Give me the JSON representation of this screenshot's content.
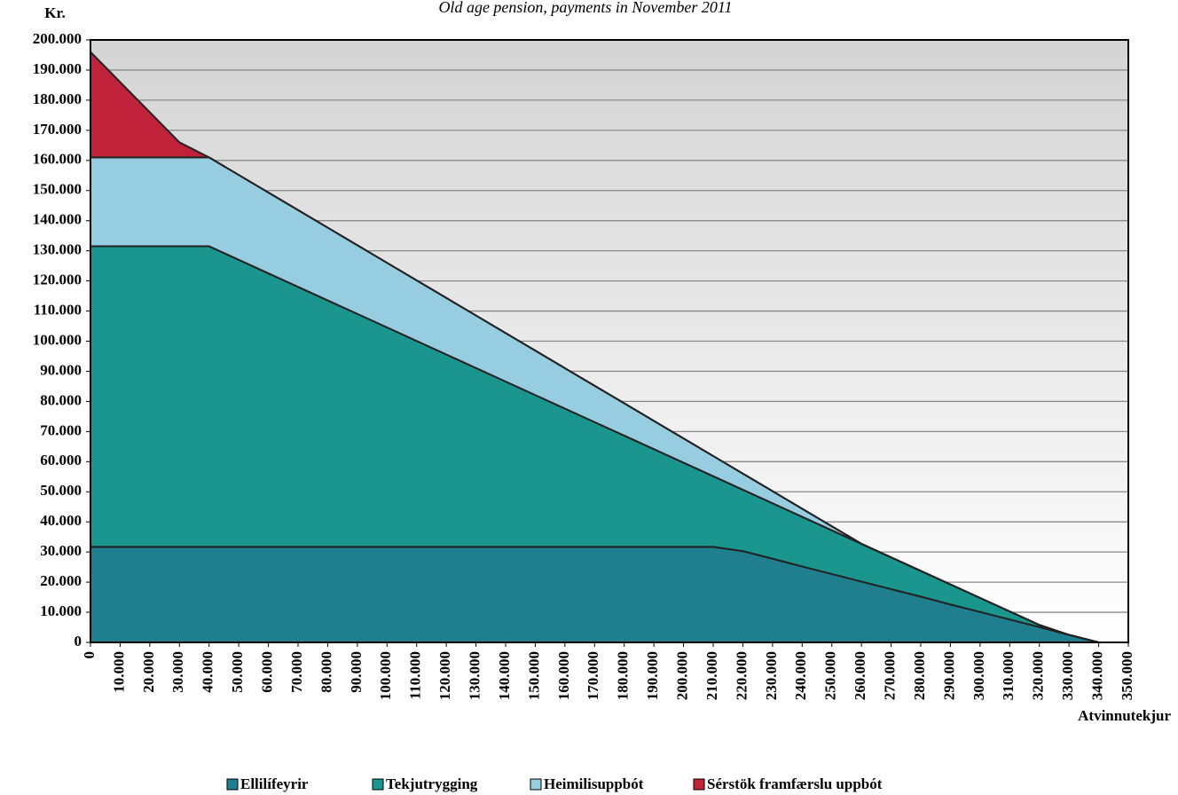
{
  "chart_data": {
    "type": "stacked-area",
    "title": "Old age pension, payments in November 2011",
    "y_label": "Kr.",
    "x_label": "Atvinnutekjur",
    "x": [
      0,
      10000,
      20000,
      30000,
      40000,
      50000,
      60000,
      70000,
      80000,
      90000,
      100000,
      110000,
      120000,
      130000,
      140000,
      150000,
      160000,
      170000,
      180000,
      190000,
      200000,
      210000,
      220000,
      230000,
      240000,
      250000,
      260000,
      270000,
      280000,
      290000,
      300000,
      310000,
      320000,
      330000,
      340000,
      350000
    ],
    "series": [
      {
        "name": "Ellilífeyrir",
        "color": "#1f7f8f",
        "values": [
          31700,
          31700,
          31700,
          31700,
          31700,
          31700,
          31700,
          31700,
          31700,
          31700,
          31700,
          31700,
          31700,
          31700,
          31700,
          31700,
          31700,
          31700,
          31700,
          31700,
          31700,
          31700,
          30300,
          27800,
          25200,
          22700,
          20200,
          17700,
          15200,
          12600,
          10100,
          7600,
          5100,
          2500,
          0,
          0
        ]
      },
      {
        "name": "Tekjutrygging",
        "color": "#1a968f",
        "values": [
          99800,
          99800,
          99800,
          99800,
          99800,
          95310,
          90820,
          86330,
          81840,
          77350,
          72860,
          68370,
          63880,
          59390,
          54900,
          50410,
          45920,
          41430,
          36940,
          32450,
          27960,
          23470,
          20380,
          18390,
          16500,
          14510,
          12520,
          10530,
          8540,
          6650,
          4660,
          2670,
          680,
          0,
          0,
          0
        ]
      },
      {
        "name": "Heimilisuppbót",
        "color": "#96cde0",
        "values": [
          29500,
          29500,
          29500,
          29500,
          29500,
          28160,
          26820,
          25480,
          24140,
          22800,
          21450,
          20110,
          18770,
          17430,
          16090,
          14750,
          13410,
          12070,
          10730,
          9390,
          8040,
          6700,
          5360,
          4020,
          2680,
          1340,
          0,
          0,
          0,
          0,
          0,
          0,
          0,
          0,
          0,
          0
        ]
      },
      {
        "name": "Sérstök framfærslu uppbót",
        "color": "#c0223a",
        "values": [
          35000,
          25000,
          15000,
          5000,
          0,
          0,
          0,
          0,
          0,
          0,
          0,
          0,
          0,
          0,
          0,
          0,
          0,
          0,
          0,
          0,
          0,
          0,
          0,
          0,
          0,
          0,
          0,
          0,
          0,
          0,
          0,
          0,
          0,
          0,
          0,
          0
        ]
      }
    ],
    "xlim": [
      0,
      350000
    ],
    "ylim": [
      0,
      200000
    ],
    "xticks": [
      0,
      {
        "value": 10000,
        "label": "10.000"
      },
      {
        "value": 20000,
        "label": "20.000"
      },
      {
        "value": 30000,
        "label": "30.000"
      },
      {
        "value": 40000,
        "label": "40.000"
      },
      {
        "value": 50000,
        "label": "50.000"
      },
      {
        "value": 60000,
        "label": "60.000"
      },
      {
        "value": 70000,
        "label": "70.000"
      },
      {
        "value": 80000,
        "label": "80.000"
      },
      {
        "value": 90000,
        "label": "90.000"
      },
      {
        "value": 100000,
        "label": "100.000"
      },
      {
        "value": 110000,
        "label": "110.000"
      },
      {
        "value": 120000,
        "label": "120.000"
      },
      {
        "value": 130000,
        "label": "130.000"
      },
      {
        "value": 140000,
        "label": "140.000"
      },
      {
        "value": 150000,
        "label": "150.000"
      },
      {
        "value": 160000,
        "label": "160.000"
      },
      {
        "value": 170000,
        "label": "170.000"
      },
      {
        "value": 180000,
        "label": "180.000"
      },
      {
        "value": 190000,
        "label": "190.000"
      },
      {
        "value": 200000,
        "label": "200.000"
      },
      {
        "value": 210000,
        "label": "210.000"
      },
      {
        "value": 220000,
        "label": "220.000"
      },
      {
        "value": 230000,
        "label": "230.000"
      },
      {
        "value": 240000,
        "label": "240.000"
      },
      {
        "value": 250000,
        "label": "250.000"
      },
      {
        "value": 260000,
        "label": "260.000"
      },
      {
        "value": 270000,
        "label": "270.000"
      },
      {
        "value": 280000,
        "label": "280.000"
      },
      {
        "value": 290000,
        "label": "290.000"
      },
      {
        "value": 300000,
        "label": "300.000"
      },
      {
        "value": 310000,
        "label": "310.000"
      },
      {
        "value": 320000,
        "label": "320.000"
      },
      {
        "value": 330000,
        "label": "330.000"
      },
      {
        "value": 340000,
        "label": "340.000"
      },
      {
        "value": 350000,
        "label": "350.000"
      }
    ],
    "yticks": [
      0,
      {
        "value": 10000,
        "label": "10.000"
      },
      {
        "value": 20000,
        "label": "20.000"
      },
      {
        "value": 30000,
        "label": "30.000"
      },
      {
        "value": 40000,
        "label": "40.000"
      },
      {
        "value": 50000,
        "label": "50.000"
      },
      {
        "value": 60000,
        "label": "60.000"
      },
      {
        "value": 70000,
        "label": "70.000"
      },
      {
        "value": 80000,
        "label": "80.000"
      },
      {
        "value": 90000,
        "label": "90.000"
      },
      {
        "value": 100000,
        "label": "100.000"
      },
      {
        "value": 110000,
        "label": "110.000"
      },
      {
        "value": 120000,
        "label": "120.000"
      },
      {
        "value": 130000,
        "label": "130.000"
      },
      {
        "value": 140000,
        "label": "140.000"
      },
      {
        "value": 150000,
        "label": "150.000"
      },
      {
        "value": 160000,
        "label": "160.000"
      },
      {
        "value": 170000,
        "label": "170.000"
      },
      {
        "value": 180000,
        "label": "180.000"
      },
      {
        "value": 190000,
        "label": "190.000"
      },
      {
        "value": 200000,
        "label": "200.000"
      }
    ],
    "grid": true
  }
}
